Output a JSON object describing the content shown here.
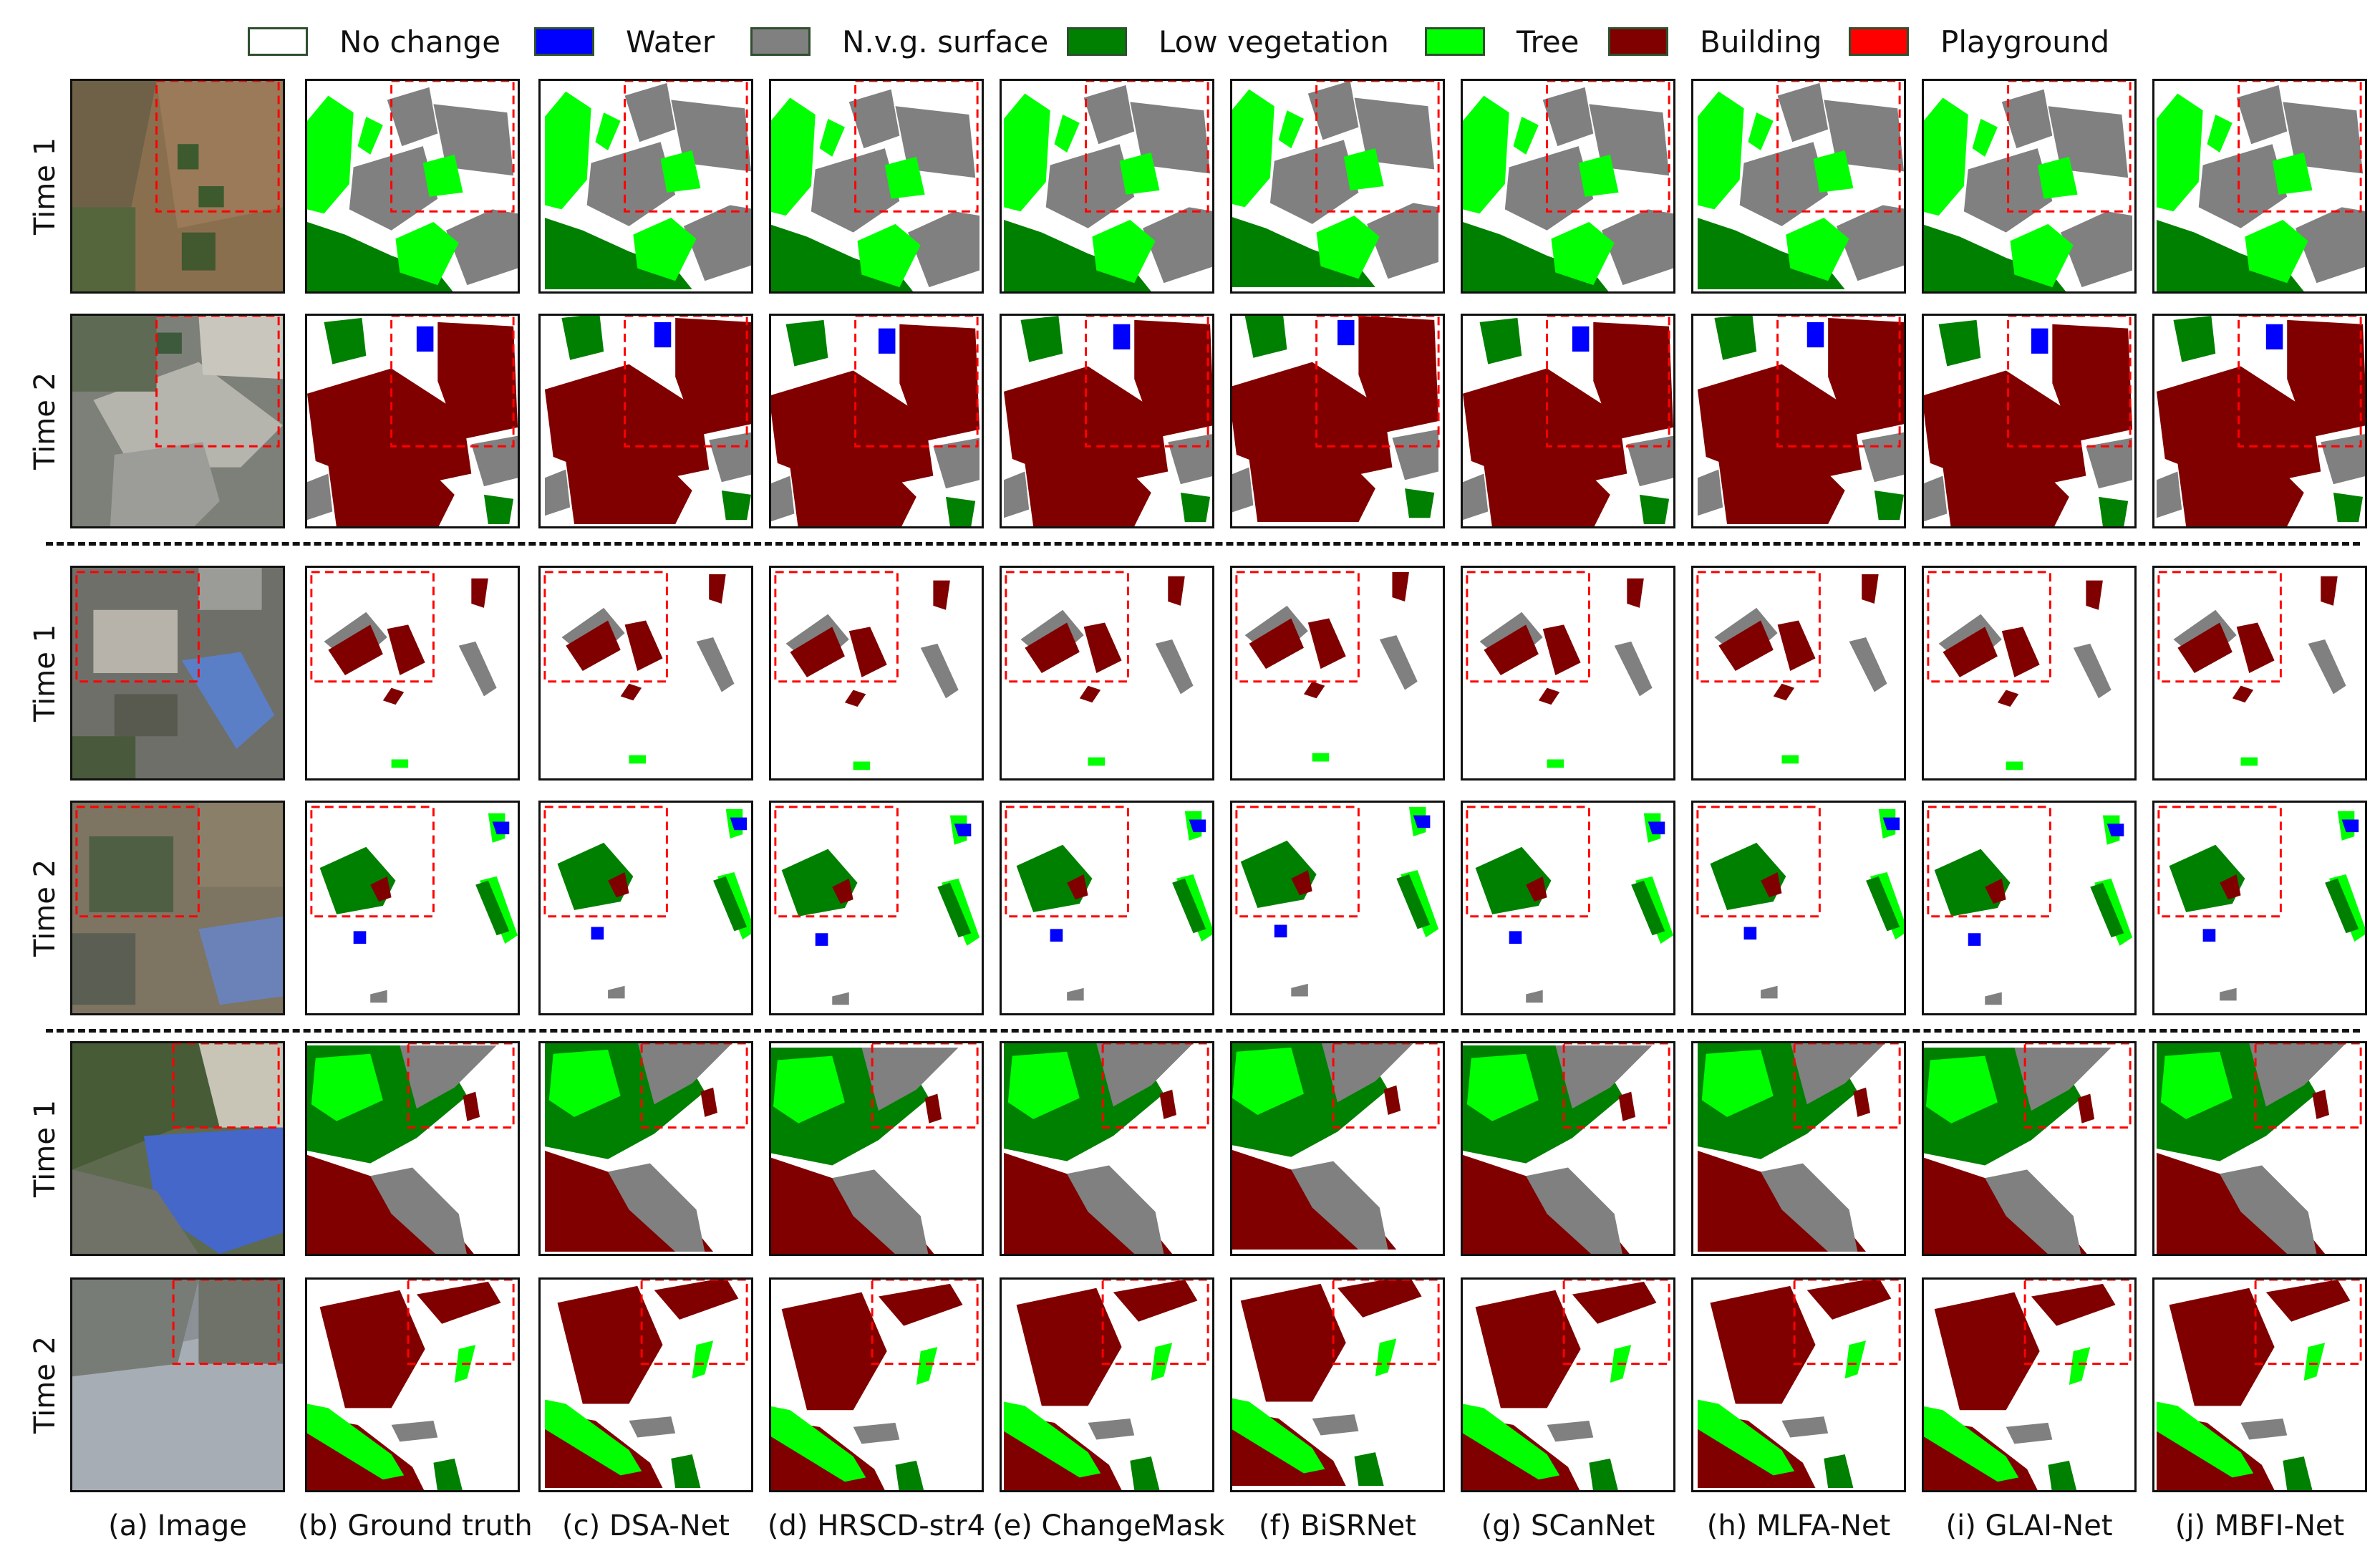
{
  "legend": [
    {
      "label": "No change",
      "color": "#ffffff"
    },
    {
      "label": "Water",
      "color": "#0000ff"
    },
    {
      "label": "N.v.g. surface",
      "color": "#808080"
    },
    {
      "label": "Low vegetation",
      "color": "#008000"
    },
    {
      "label": "Tree",
      "color": "#00ff00"
    },
    {
      "label": "Building",
      "color": "#800000"
    },
    {
      "label": "Playground",
      "color": "#ff0000"
    }
  ],
  "row_labels": [
    "Time 1",
    "Time 2",
    "Time 1",
    "Time 2",
    "Time 1",
    "Time 2"
  ],
  "column_captions": [
    "(a) Image",
    "(b) Ground truth",
    "(c) DSA-Net",
    "(d) HRSCD-str4",
    "(e) ChangeMask",
    "(f) BiSRNet",
    "(g) SCanNet",
    "(h) MLFA-Net",
    "(i) GLAI-Net",
    "(j) MBFI-Net"
  ],
  "highlight_box_color": "#ff0000"
}
